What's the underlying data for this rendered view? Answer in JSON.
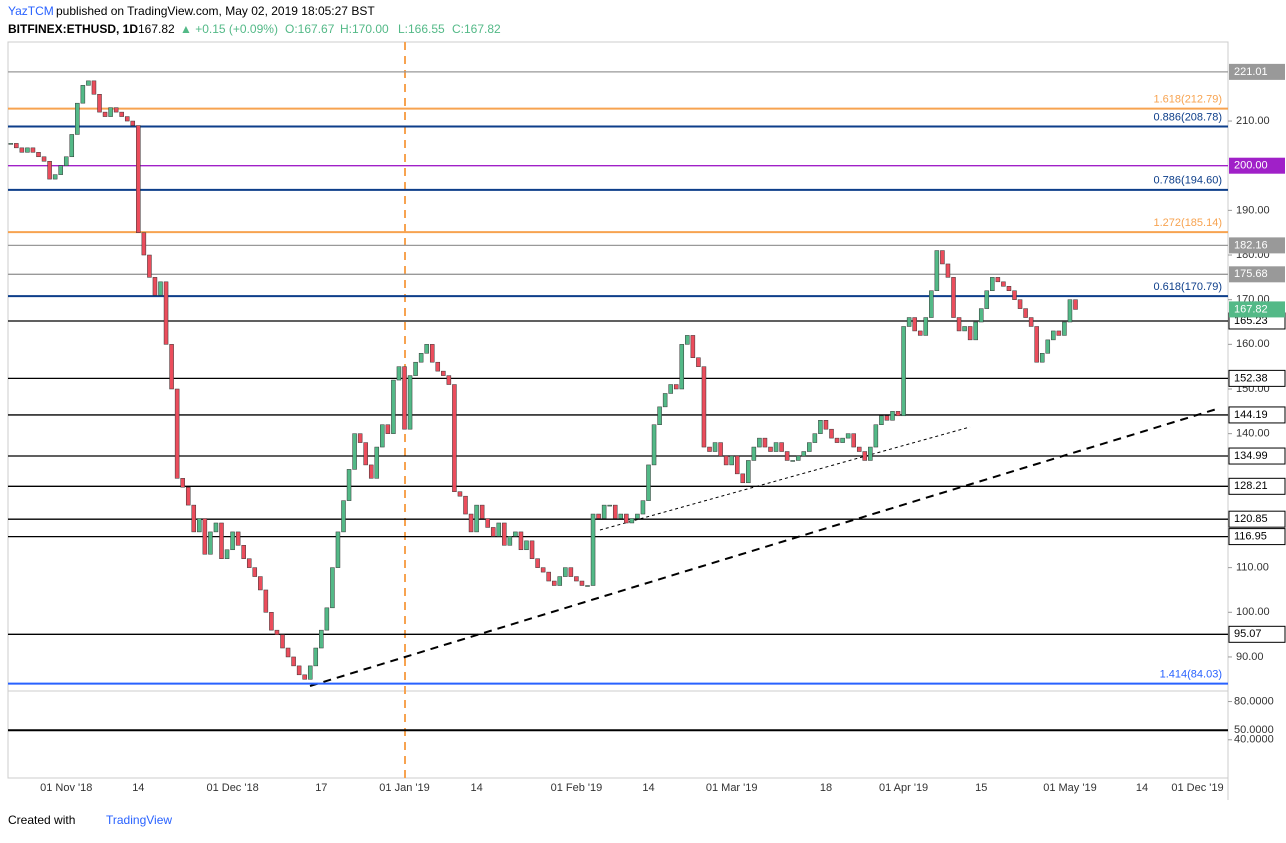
{
  "header": {
    "publisher": "YazTCM",
    "published": "published on TradingView.com, May 02, 2019 18:05:27 BST",
    "symbol": "BITFINEX:ETHUSD, 1D",
    "last": "167.82",
    "change": "▲ +0.15 (+0.09%)",
    "open": "O:167.67",
    "high": "H:170.00",
    "low": "L:166.55",
    "close": "C:167.82"
  },
  "footer": {
    "created": "Created with",
    "brand": "TradingView"
  },
  "chart_data": {
    "type": "candlestick",
    "up_color": "#53b987",
    "down_color": "#eb4d5c",
    "categories": [
      null,
      null,
      null,
      null,
      null,
      null,
      null,
      null,
      null,
      null,
      "01 Nov '18",
      null,
      null,
      null,
      null,
      null,
      null,
      null,
      null,
      null,
      null,
      null,
      null,
      "14",
      null,
      null,
      null,
      null,
      null,
      null,
      null,
      null,
      null,
      null,
      null,
      null,
      null,
      null,
      null,
      null,
      "01 Dec '18",
      null,
      null,
      null,
      null,
      null,
      null,
      null,
      null,
      null,
      null,
      null,
      null,
      null,
      null,
      null,
      "17",
      null,
      null,
      null,
      null,
      null,
      null,
      null,
      null,
      null,
      null,
      null,
      null,
      null,
      null,
      "01 Jan '19",
      null,
      null,
      null,
      null,
      null,
      null,
      null,
      null,
      null,
      null,
      null,
      null,
      "14",
      null,
      null,
      null,
      null,
      null,
      null,
      null,
      null,
      null,
      null,
      null,
      null,
      null,
      null,
      null,
      null,
      null,
      "01 Feb '19",
      null,
      null,
      null,
      null,
      null,
      null,
      null,
      null,
      null,
      null,
      null,
      null,
      "14",
      null,
      null,
      null,
      null,
      null,
      null,
      null,
      null,
      null,
      null,
      null,
      null,
      null,
      null,
      "01 Mar '19",
      null,
      null,
      null,
      null,
      null,
      null,
      null,
      null,
      null,
      null,
      null,
      null,
      null,
      null,
      null,
      null,
      "18",
      null,
      null,
      null,
      null,
      null,
      null,
      null,
      null,
      null,
      null,
      null,
      null,
      null,
      "01 Apr '19",
      null,
      null,
      null,
      null,
      null,
      null,
      null,
      null,
      null,
      null,
      null,
      null,
      null,
      "15",
      null,
      null,
      null,
      null,
      null,
      null,
      null,
      null,
      null,
      null,
      null,
      null,
      null,
      null,
      null,
      "01 May '19",
      null,
      null,
      null,
      null,
      null,
      null,
      null,
      null,
      null,
      null,
      null,
      null,
      "14",
      null,
      null,
      null,
      null,
      null,
      null,
      null,
      null,
      null,
      "01 Dec '19",
      null,
      null,
      null,
      null,
      null
    ],
    "values": [
      205,
      204,
      203,
      204,
      203,
      202,
      201,
      197,
      198,
      200,
      202,
      207,
      214,
      218,
      219,
      216,
      212,
      211,
      213,
      212,
      211,
      210,
      209,
      185,
      180,
      175,
      171,
      174,
      160,
      150,
      130,
      128,
      124,
      118,
      121,
      113,
      118,
      120,
      112,
      114,
      118,
      115,
      112,
      110,
      108,
      105,
      100,
      96,
      95,
      92,
      90,
      88,
      86,
      85,
      88,
      92,
      96,
      101,
      110,
      118,
      125,
      132,
      140,
      138,
      133,
      130,
      137,
      142,
      140,
      152,
      155,
      141,
      153,
      156,
      158,
      160,
      156,
      154,
      153,
      151,
      127,
      126,
      122,
      118,
      124,
      121,
      119,
      117,
      120,
      115,
      117,
      118,
      114,
      116,
      112,
      110,
      109,
      107,
      106,
      108,
      110,
      108,
      107,
      106,
      106,
      122,
      121,
      124,
      124,
      121,
      122,
      120,
      121,
      122,
      125,
      133,
      142,
      146,
      149,
      151,
      150,
      160,
      162,
      157,
      155,
      137,
      136,
      138,
      135,
      133,
      135,
      131,
      129,
      134,
      137,
      139,
      137,
      136,
      138,
      136,
      134,
      134,
      135,
      136,
      138,
      140,
      143,
      141,
      139,
      138,
      139,
      140,
      137,
      136,
      134,
      137,
      142,
      144,
      143,
      145,
      144,
      164,
      166,
      163,
      162,
      166,
      172,
      181,
      178,
      175,
      166,
      163,
      164,
      161,
      165,
      168,
      172,
      175,
      174,
      173,
      172,
      170,
      168,
      166,
      164,
      156,
      158,
      161,
      163,
      162,
      165,
      170,
      167.82,
      null,
      null,
      null,
      null,
      null,
      null,
      null,
      null,
      null,
      null,
      null,
      null,
      null,
      null,
      null,
      null,
      null,
      null,
      null,
      null,
      null,
      null,
      null,
      null,
      null,
      null,
      null
    ],
    "ylim": [
      82.6,
      227.7
    ],
    "yticks": [
      {
        "value": 90,
        "label": "90.00"
      },
      {
        "value": 100,
        "label": "100.00"
      },
      {
        "value": 110,
        "label": "110.00"
      },
      {
        "value": 140,
        "label": "140.00"
      },
      {
        "value": 150,
        "label": "150.00"
      },
      {
        "value": 160,
        "label": "160.00"
      },
      {
        "value": 170,
        "label": "170.00"
      },
      {
        "value": 180,
        "label": "180.00"
      },
      {
        "value": 190,
        "label": "190.00"
      },
      {
        "value": 210,
        "label": "210.00"
      }
    ],
    "last_price": {
      "value": 167.82,
      "label": "167.82",
      "color": "#53b987"
    },
    "levels": [
      {
        "value": 221.01,
        "label": "221.01",
        "color": "#999999",
        "kind": "axis"
      },
      {
        "value": 212.79,
        "label": "1.618(212.79)",
        "color": "#f7a350",
        "kind": "fib"
      },
      {
        "value": 208.78,
        "label": "0.886(208.78)",
        "color": "#0d3e8a",
        "kind": "fib"
      },
      {
        "value": 200,
        "label": "200.00",
        "color": "#a020c8",
        "kind": "axis"
      },
      {
        "value": 194.6,
        "label": "0.786(194.60)",
        "color": "#0d3e8a",
        "kind": "fib"
      },
      {
        "value": 185.14,
        "label": "1.272(185.14)",
        "color": "#f7a350",
        "kind": "fib"
      },
      {
        "value": 182.16,
        "label": "182.16",
        "color": "#999999",
        "kind": "axis"
      },
      {
        "value": 175.68,
        "label": "175.68",
        "color": "#999999",
        "kind": "axis"
      },
      {
        "value": 170.79,
        "label": "0.618(170.79)",
        "color": "#0d3e8a",
        "kind": "fib"
      },
      {
        "value": 165.23,
        "label": "165.23",
        "color": "#000000",
        "kind": "axis"
      },
      {
        "value": 152.38,
        "label": "152.38",
        "color": "#000000",
        "kind": "axis"
      },
      {
        "value": 144.19,
        "label": "144.19",
        "color": "#000000",
        "kind": "axis"
      },
      {
        "value": 134.99,
        "label": "134.99",
        "color": "#000000",
        "kind": "axis"
      },
      {
        "value": 128.21,
        "label": "128.21",
        "color": "#000000",
        "kind": "axis"
      },
      {
        "value": 120.85,
        "label": "120.85",
        "color": "#000000",
        "kind": "axis"
      },
      {
        "value": 116.95,
        "label": "116.95",
        "color": "#000000",
        "kind": "axis"
      },
      {
        "value": 95.07,
        "label": "95.07",
        "color": "#000000",
        "kind": "axis"
      },
      {
        "value": 84.03,
        "label": "1.414(84.03)",
        "color": "#2962ff",
        "kind": "fib"
      }
    ],
    "rsi_ylim": [
      0,
      90
    ],
    "rsi_yticks": [
      {
        "value": 80,
        "label": "80.0000"
      },
      {
        "value": 50,
        "label": "50.0000"
      },
      {
        "value": 40,
        "label": "40.0000"
      }
    ]
  }
}
